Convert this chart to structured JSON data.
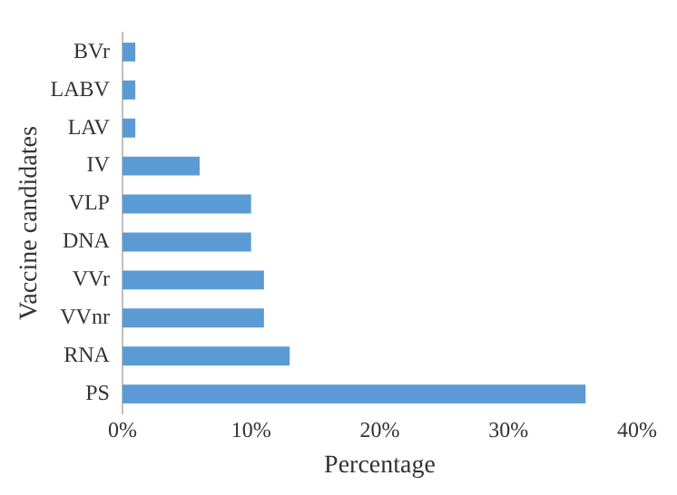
{
  "chart_data": {
    "type": "bar",
    "orientation": "horizontal",
    "xlabel": "Percentage",
    "ylabel": "Vaccine candidates",
    "categories": [
      "BVr",
      "LABV",
      "LAV",
      "IV",
      "VLP",
      "DNA",
      "VVr",
      "VVnr",
      "RNA",
      "PS"
    ],
    "values": [
      1,
      1,
      1,
      6,
      10,
      10,
      11,
      11,
      13,
      36
    ],
    "color": "#5b9bd5",
    "xlim": [
      0,
      40
    ],
    "xticks": [
      {
        "value": 0,
        "label": "0%"
      },
      {
        "value": 10,
        "label": "10%"
      },
      {
        "value": 20,
        "label": "20%"
      },
      {
        "value": 30,
        "label": "30%"
      },
      {
        "value": 40,
        "label": "40%"
      }
    ],
    "grid": false,
    "legend": false
  }
}
